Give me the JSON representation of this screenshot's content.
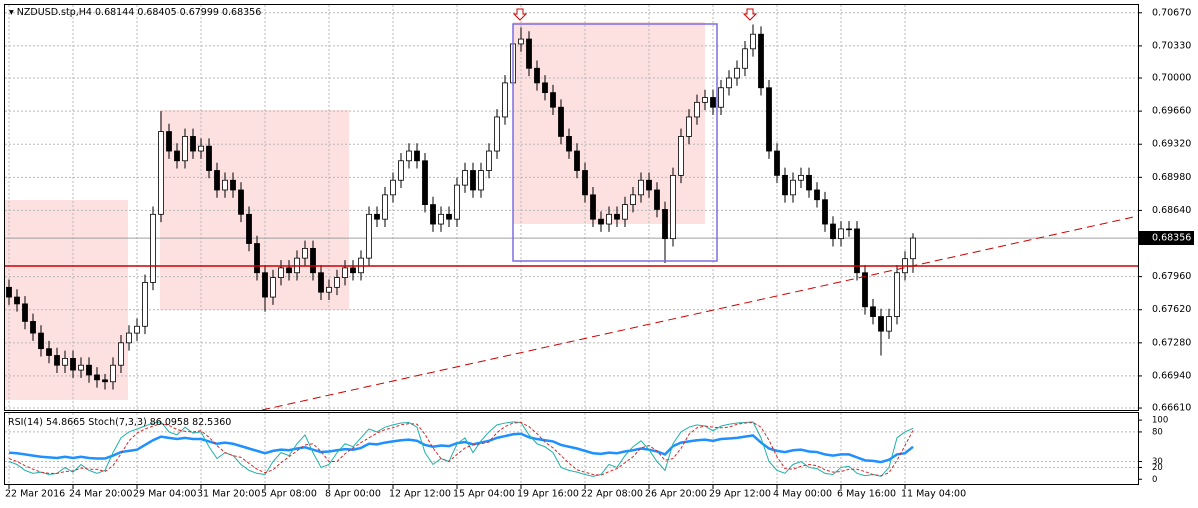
{
  "chart_data": [
    {
      "type": "candlestick",
      "title": "NZDUSD.stp,H4",
      "categories": [
        "22 Mar 2016",
        null,
        null,
        null,
        null,
        null,
        null,
        null,
        "24 Mar 20:00",
        null,
        null,
        null,
        null,
        null,
        null,
        null,
        "29 Mar 04:00",
        null,
        null,
        null,
        null,
        null,
        null,
        null,
        "31 Mar 20:00",
        null,
        null,
        null,
        null,
        null,
        null,
        null,
        "5 Apr 08:00",
        null,
        null,
        null,
        null,
        null,
        null,
        null,
        "8 Apr 00:00",
        null,
        null,
        null,
        null,
        null,
        null,
        null,
        "12 Apr 12:00",
        null,
        null,
        null,
        null,
        null,
        null,
        null,
        "15 Apr 04:00",
        null,
        null,
        null,
        null,
        null,
        null,
        null,
        "19 Apr 16:00",
        null,
        null,
        null,
        null,
        null,
        null,
        null,
        "22 Apr 08:00",
        null,
        null,
        null,
        null,
        null,
        null,
        null,
        "26 Apr 20:00",
        null,
        null,
        null,
        null,
        null,
        null,
        null,
        "29 Apr 12:00",
        null,
        null,
        null,
        null,
        null,
        null,
        null,
        "4 May 00:00",
        null,
        null,
        null,
        null,
        null,
        null,
        null,
        "6 May 16:00",
        null,
        null,
        null,
        null,
        null,
        null,
        null,
        "11 May 04:00",
        null
      ],
      "open": [
        0.6785,
        0.6775,
        0.6768,
        0.675,
        0.6738,
        0.6722,
        0.6715,
        0.6705,
        0.6712,
        0.67,
        0.6705,
        0.6695,
        0.669,
        0.6688,
        0.6705,
        0.6728,
        0.6738,
        0.6745,
        0.679,
        0.686,
        0.6945,
        0.6925,
        0.6915,
        0.694,
        0.6925,
        0.693,
        0.6905,
        0.6885,
        0.6895,
        0.6885,
        0.686,
        0.683,
        0.68,
        0.6775,
        0.6795,
        0.6805,
        0.68,
        0.6815,
        0.6825,
        0.68,
        0.678,
        0.6785,
        0.6795,
        0.6805,
        0.68,
        0.6815,
        0.686,
        0.6855,
        0.688,
        0.6895,
        0.6915,
        0.6925,
        0.6915,
        0.687,
        0.685,
        0.686,
        0.6855,
        0.689,
        0.6905,
        0.6885,
        0.6905,
        0.6925,
        0.696,
        0.6995,
        0.7035,
        0.704,
        0.701,
        0.6995,
        0.6985,
        0.697,
        0.694,
        0.6925,
        0.6905,
        0.688,
        0.6855,
        0.685,
        0.686,
        0.6855,
        0.687,
        0.688,
        0.6895,
        0.6885,
        0.6865,
        0.6835,
        0.69,
        0.694,
        0.696,
        0.6975,
        0.698,
        0.697,
        0.699,
        0.7,
        0.701,
        0.703,
        0.7045,
        0.699,
        0.6925,
        0.69,
        0.688,
        0.6895,
        0.69,
        0.6885,
        0.6875,
        0.685,
        0.6835,
        0.6845,
        0.6845,
        0.68,
        0.6765,
        0.6755,
        0.674,
        0.6755,
        0.68,
        0.68144
      ],
      "high": [
        0.6793,
        0.6783,
        0.6776,
        0.6758,
        0.6746,
        0.673,
        0.6723,
        0.672,
        0.672,
        0.6713,
        0.6713,
        0.6703,
        0.6696,
        0.6713,
        0.6736,
        0.6746,
        0.6753,
        0.6798,
        0.6868,
        0.6966,
        0.6953,
        0.6933,
        0.6948,
        0.6948,
        0.6938,
        0.6938,
        0.6913,
        0.6903,
        0.6903,
        0.6893,
        0.6868,
        0.6838,
        0.6808,
        0.6803,
        0.6813,
        0.6813,
        0.6823,
        0.6833,
        0.6833,
        0.6808,
        0.6793,
        0.6803,
        0.6813,
        0.6813,
        0.6823,
        0.6868,
        0.6868,
        0.6888,
        0.6903,
        0.6923,
        0.6933,
        0.6933,
        0.6923,
        0.6878,
        0.6868,
        0.6868,
        0.6898,
        0.6913,
        0.6913,
        0.6913,
        0.6933,
        0.6968,
        0.7003,
        0.7043,
        0.7052,
        0.7048,
        0.7018,
        0.7003,
        0.6993,
        0.6978,
        0.6948,
        0.6933,
        0.6913,
        0.6888,
        0.6863,
        0.6868,
        0.6868,
        0.6878,
        0.6888,
        0.6903,
        0.6903,
        0.6893,
        0.6873,
        0.6908,
        0.6948,
        0.6968,
        0.6983,
        0.6988,
        0.6988,
        0.6998,
        0.7008,
        0.7018,
        0.7038,
        0.7055,
        0.7053,
        0.6998,
        0.6933,
        0.6908,
        0.6903,
        0.6908,
        0.6908,
        0.6893,
        0.6883,
        0.6858,
        0.6853,
        0.6853,
        0.6853,
        0.6808,
        0.6773,
        0.6763,
        0.6763,
        0.6808,
        0.6822,
        0.68405
      ],
      "low": [
        0.6767,
        0.676,
        0.6742,
        0.673,
        0.6714,
        0.6707,
        0.6697,
        0.6697,
        0.6692,
        0.6692,
        0.6687,
        0.6682,
        0.668,
        0.668,
        0.6697,
        0.672,
        0.673,
        0.6737,
        0.6782,
        0.6852,
        0.6917,
        0.6907,
        0.6907,
        0.6917,
        0.6917,
        0.6897,
        0.6877,
        0.6877,
        0.6877,
        0.6852,
        0.6822,
        0.6792,
        0.676,
        0.6767,
        0.6787,
        0.6792,
        0.6792,
        0.6807,
        0.6792,
        0.6772,
        0.6772,
        0.6777,
        0.6787,
        0.6792,
        0.6792,
        0.6807,
        0.6847,
        0.6847,
        0.6872,
        0.6887,
        0.6907,
        0.6907,
        0.6862,
        0.6842,
        0.6842,
        0.6847,
        0.6847,
        0.6882,
        0.6877,
        0.6877,
        0.6897,
        0.6917,
        0.6952,
        0.6987,
        0.7027,
        0.7002,
        0.6987,
        0.6977,
        0.6962,
        0.6932,
        0.6917,
        0.6897,
        0.6872,
        0.6847,
        0.6842,
        0.6842,
        0.6847,
        0.6847,
        0.6862,
        0.6872,
        0.6877,
        0.6857,
        0.681,
        0.6827,
        0.6892,
        0.6932,
        0.6952,
        0.6967,
        0.6962,
        0.6962,
        0.6982,
        0.6992,
        0.7002,
        0.7022,
        0.6982,
        0.6917,
        0.6892,
        0.6872,
        0.6872,
        0.6887,
        0.6877,
        0.6867,
        0.6842,
        0.6827,
        0.6827,
        0.6837,
        0.6792,
        0.6757,
        0.6747,
        0.6715,
        0.6732,
        0.6747,
        0.6792,
        0.67999
      ],
      "close": [
        0.6775,
        0.6768,
        0.675,
        0.6738,
        0.6722,
        0.6715,
        0.6705,
        0.6712,
        0.67,
        0.6705,
        0.6695,
        0.669,
        0.6688,
        0.6705,
        0.6728,
        0.6738,
        0.6745,
        0.679,
        0.686,
        0.6945,
        0.6925,
        0.6915,
        0.694,
        0.6925,
        0.693,
        0.6905,
        0.6885,
        0.6895,
        0.6885,
        0.686,
        0.683,
        0.68,
        0.6775,
        0.6795,
        0.6805,
        0.68,
        0.6815,
        0.6825,
        0.68,
        0.678,
        0.6785,
        0.6795,
        0.6805,
        0.68,
        0.6815,
        0.686,
        0.6855,
        0.688,
        0.6895,
        0.6915,
        0.6925,
        0.6915,
        0.687,
        0.685,
        0.686,
        0.6855,
        0.689,
        0.6905,
        0.6885,
        0.6905,
        0.6925,
        0.696,
        0.6995,
        0.7035,
        0.704,
        0.701,
        0.6995,
        0.6985,
        0.697,
        0.694,
        0.6925,
        0.6905,
        0.688,
        0.6855,
        0.685,
        0.686,
        0.6855,
        0.687,
        0.688,
        0.6895,
        0.6885,
        0.6865,
        0.6835,
        0.69,
        0.694,
        0.696,
        0.6975,
        0.698,
        0.697,
        0.699,
        0.7,
        0.701,
        0.703,
        0.7045,
        0.699,
        0.6925,
        0.69,
        0.688,
        0.6895,
        0.69,
        0.6885,
        0.6875,
        0.685,
        0.6835,
        0.6845,
        0.6845,
        0.68,
        0.6765,
        0.6755,
        0.674,
        0.6755,
        0.68,
        0.68144,
        0.68356
      ],
      "color": "#000000",
      "up_fill": "#ffffff",
      "ylim": [
        0.6659,
        0.7075
      ],
      "yticks": [
        {
          "value": 0.7067,
          "label": "0.70670"
        },
        {
          "value": 0.7033,
          "label": "0.70330"
        },
        {
          "value": 0.7,
          "label": "0.70000"
        },
        {
          "value": 0.6966,
          "label": "0.69660"
        },
        {
          "value": 0.6932,
          "label": "0.69320"
        },
        {
          "value": 0.6898,
          "label": "0.68980"
        },
        {
          "value": 0.6864,
          "label": "0.68640"
        },
        {
          "value": 0.6796,
          "label": "0.67960"
        },
        {
          "value": 0.6762,
          "label": "0.67620"
        },
        {
          "value": 0.6728,
          "label": "0.67280"
        },
        {
          "value": 0.6694,
          "label": "0.66940"
        },
        {
          "value": 0.6661,
          "label": "0.66610"
        }
      ],
      "grid": true
    },
    {
      "type": "line",
      "series": [
        {
          "name": "RSI(14)",
          "color": "#1e90ff",
          "values": [
            45,
            44,
            42,
            40,
            38,
            37,
            36,
            38,
            36,
            38,
            36,
            35,
            35,
            40,
            46,
            48,
            50,
            58,
            66,
            72,
            70,
            68,
            70,
            68,
            68,
            64,
            60,
            62,
            60,
            56,
            52,
            48,
            44,
            48,
            50,
            49,
            52,
            54,
            50,
            46,
            47,
            49,
            51,
            50,
            53,
            60,
            59,
            62,
            64,
            66,
            67,
            65,
            58,
            55,
            57,
            56,
            61,
            63,
            59,
            62,
            65,
            70,
            73,
            76,
            77,
            71,
            68,
            66,
            64,
            58,
            55,
            52,
            48,
            44,
            43,
            45,
            44,
            47,
            49,
            52,
            50,
            47,
            42,
            56,
            62,
            64,
            66,
            67,
            65,
            68,
            69,
            70,
            72,
            74,
            62,
            52,
            48,
            46,
            49,
            50,
            47,
            46,
            42,
            40,
            42,
            42,
            37,
            32,
            31,
            29,
            33,
            42,
            44,
            54.8665
          ]
        },
        {
          "name": "Stoch(7,3,3)",
          "color": "#20b2aa",
          "values": [
            30,
            25,
            15,
            10,
            12,
            8,
            10,
            20,
            12,
            25,
            15,
            10,
            15,
            45,
            70,
            80,
            85,
            90,
            95,
            97,
            80,
            75,
            88,
            78,
            80,
            55,
            35,
            45,
            40,
            25,
            15,
            10,
            8,
            30,
            45,
            40,
            60,
            75,
            45,
            20,
            25,
            45,
            60,
            55,
            70,
            85,
            80,
            88,
            92,
            95,
            96,
            88,
            45,
            25,
            35,
            30,
            60,
            70,
            45,
            65,
            80,
            92,
            95,
            97,
            96,
            75,
            60,
            55,
            45,
            20,
            15,
            12,
            8,
            5,
            8,
            25,
            20,
            40,
            55,
            65,
            50,
            30,
            15,
            60,
            80,
            88,
            92,
            90,
            82,
            90,
            93,
            95,
            96,
            97,
            70,
            30,
            15,
            10,
            25,
            30,
            20,
            18,
            10,
            8,
            20,
            22,
            10,
            6,
            8,
            5,
            20,
            70,
            80,
            86.0958
          ]
        },
        {
          "color": "#d62728",
          "values": [
            35,
            30,
            23,
            17,
            12,
            10,
            10,
            13,
            14,
            19,
            17,
            17,
            13,
            23,
            43,
            65,
            78,
            85,
            90,
            94,
            91,
            84,
            81,
            80,
            82,
            71,
            57,
            45,
            40,
            37,
            27,
            17,
            11,
            16,
            28,
            38,
            48,
            58,
            60,
            47,
            30,
            30,
            43,
            53,
            62,
            70,
            78,
            84,
            87,
            92,
            94,
            93,
            76,
            53,
            35,
            30,
            42,
            53,
            58,
            60,
            63,
            79,
            89,
            95,
            96,
            89,
            77,
            63,
            53,
            40,
            27,
            16,
            12,
            8,
            7,
            13,
            18,
            28,
            38,
            53,
            57,
            48,
            32,
            35,
            52,
            76,
            87,
            90,
            88,
            87,
            88,
            93,
            95,
            96,
            88,
            66,
            38,
            18,
            17,
            22,
            25,
            23,
            16,
            12,
            13,
            17,
            17,
            13,
            8,
            6,
            11,
            32,
            57,
            82.536
          ],
          "value_labels": [
            null,
            null,
            null,
            null,
            null,
            null,
            null,
            null,
            null,
            null,
            null,
            null,
            null,
            null,
            null,
            null,
            null,
            null,
            null,
            null,
            null,
            null,
            null,
            null,
            null,
            null,
            null,
            null,
            null,
            null,
            null,
            null,
            null,
            null,
            null,
            null,
            null,
            null,
            null,
            null,
            null,
            null,
            null,
            null,
            null,
            null,
            null,
            null,
            null,
            null,
            null,
            null,
            null,
            null,
            null,
            null,
            null,
            null,
            null,
            null,
            null,
            null,
            null,
            null,
            null,
            null,
            null,
            null,
            null,
            null,
            null,
            null,
            null,
            null,
            null,
            null,
            null,
            null,
            null,
            null,
            null,
            null,
            null,
            null,
            null,
            null,
            null,
            null,
            null,
            null,
            null,
            null,
            null,
            null,
            null,
            null,
            null,
            null,
            null,
            null,
            null,
            null,
            null,
            null,
            null,
            null,
            null,
            null,
            null,
            null,
            null,
            null,
            null,
            "82.5360"
          ]
        }
      ],
      "ylim": [
        -8,
        112
      ],
      "yticks": [
        100,
        80,
        30,
        20,
        0
      ],
      "grid": true
    }
  ]
}
